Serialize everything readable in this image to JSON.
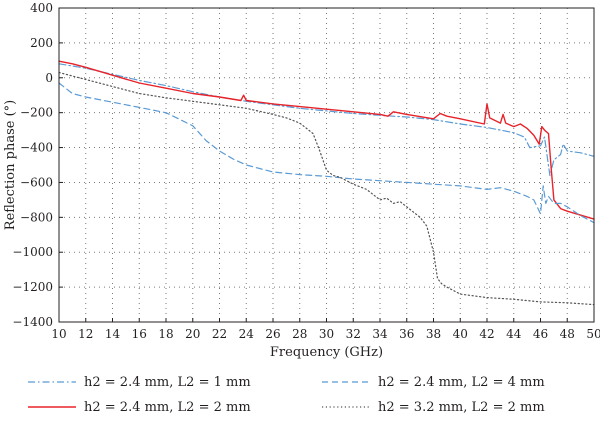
{
  "chart_data": {
    "type": "line",
    "title": "",
    "xlabel": "Frequency (GHz)",
    "ylabel": "Reflection phase (°)",
    "xlim": [
      10,
      50
    ],
    "ylim": [
      -1400,
      400
    ],
    "xticks": [
      10,
      12,
      14,
      16,
      18,
      20,
      22,
      24,
      26,
      28,
      30,
      32,
      34,
      36,
      38,
      40,
      42,
      44,
      46,
      48,
      50
    ],
    "yticks": [
      400,
      200,
      0,
      -200,
      -400,
      -600,
      -800,
      -1000,
      -1200,
      -1400
    ],
    "grid": true,
    "legend_position": "bottom",
    "series": [
      {
        "name": "h2 = 2.4 mm, L2 = 1 mm",
        "color": "#5b9bd5",
        "style": "dashdot",
        "x": [
          10,
          12,
          14,
          16,
          18,
          20,
          22,
          24,
          26,
          28,
          30,
          32,
          34,
          35,
          36,
          38,
          40,
          42,
          43,
          44,
          44.8,
          45.2,
          46,
          46.3,
          46.7,
          47,
          47.5,
          47.7,
          48,
          49,
          50
        ],
        "y": [
          80,
          55,
          20,
          -15,
          -45,
          -80,
          -110,
          -135,
          -155,
          -175,
          -190,
          -205,
          -215,
          -220,
          -225,
          -240,
          -265,
          -285,
          -300,
          -315,
          -340,
          -400,
          -390,
          -340,
          -560,
          -470,
          -440,
          -380,
          -420,
          -430,
          -450
        ]
      },
      {
        "name": "h2 = 2.4 mm, L2 = 2 mm",
        "color": "#e8232a",
        "style": "solid",
        "x": [
          10,
          11,
          12,
          14,
          16,
          18,
          20,
          22,
          23.6,
          23.8,
          24,
          26,
          28,
          30,
          32,
          34,
          34.6,
          35,
          36,
          38,
          38.5,
          39,
          40,
          41.8,
          42,
          42.2,
          43,
          43.2,
          43.4,
          44,
          44.5,
          45,
          45.5,
          45.9,
          46.1,
          46.3,
          46.6,
          46.8,
          47,
          47.5,
          48,
          50
        ],
        "y": [
          95,
          80,
          60,
          15,
          -30,
          -60,
          -90,
          -110,
          -130,
          -100,
          -130,
          -150,
          -165,
          -180,
          -195,
          -210,
          -220,
          -195,
          -210,
          -235,
          -205,
          -220,
          -235,
          -265,
          -150,
          -230,
          -260,
          -210,
          -260,
          -280,
          -265,
          -290,
          -330,
          -380,
          -280,
          -300,
          -320,
          -520,
          -700,
          -750,
          -765,
          -810
        ]
      },
      {
        "name": "h2 = 2.4 mm, L2 = 4 mm",
        "color": "#5b9bd5",
        "style": "dashed",
        "x": [
          10,
          11,
          12,
          14,
          16,
          18,
          20,
          21,
          22,
          23,
          24,
          25,
          26,
          28,
          30,
          32,
          34,
          36,
          38,
          40,
          42,
          43,
          44,
          45,
          45.5,
          46,
          46.2,
          46.4,
          46.6,
          47,
          47.5,
          48,
          49,
          50
        ],
        "y": [
          -30,
          -90,
          -110,
          -140,
          -170,
          -200,
          -275,
          -360,
          -420,
          -465,
          -500,
          -520,
          -540,
          -555,
          -565,
          -580,
          -590,
          -600,
          -610,
          -620,
          -640,
          -630,
          -650,
          -680,
          -700,
          -780,
          -620,
          -720,
          -680,
          -720,
          -720,
          -740,
          -790,
          -830
        ]
      },
      {
        "name": "h2 = 3.2 mm, L2 = 2 mm",
        "color": "#555555",
        "style": "dotted",
        "x": [
          10,
          12,
          14,
          16,
          18,
          20,
          22,
          24,
          26,
          27,
          28,
          29,
          29.5,
          30,
          30.5,
          31,
          32,
          33,
          34,
          34.5,
          35,
          35.5,
          36,
          37,
          37.5,
          38,
          38.3,
          38.6,
          39,
          40,
          42,
          44,
          46,
          48,
          50
        ],
        "y": [
          30,
          -10,
          -50,
          -90,
          -115,
          -135,
          -155,
          -175,
          -210,
          -230,
          -260,
          -320,
          -420,
          -530,
          -560,
          -570,
          -610,
          -640,
          -700,
          -690,
          -720,
          -710,
          -740,
          -800,
          -850,
          -1000,
          -1150,
          -1180,
          -1200,
          -1240,
          -1260,
          -1270,
          -1285,
          -1290,
          -1300
        ]
      }
    ]
  }
}
